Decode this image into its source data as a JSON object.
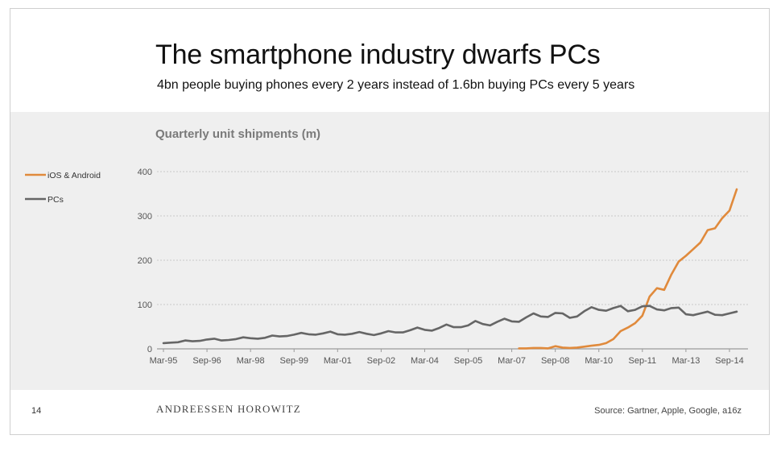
{
  "slide": {
    "title": "The smartphone industry dwarfs PCs",
    "subtitle": "4bn people buying phones every 2 years instead of 1.6bn buying PCs every 5 years",
    "page_number": "14",
    "brand": "ANDREESSEN HOROWITZ",
    "source": "Source: Gartner, Apple, Google, a16z"
  },
  "chart_data": {
    "type": "line",
    "title": "Quarterly unit shipments (m)",
    "xlabel": "",
    "ylabel": "",
    "ylim": [
      0,
      400
    ],
    "yticks": [
      0,
      100,
      200,
      300,
      400
    ],
    "grid": true,
    "legend_position": "left",
    "x_tick_labels": [
      "Mar-95",
      "Sep-96",
      "Mar-98",
      "Sep-99",
      "Mar-01",
      "Sep-02",
      "Mar-04",
      "Sep-05",
      "Mar-07",
      "Sep-08",
      "Mar-10",
      "Sep-11",
      "Mar-13",
      "Sep-14"
    ],
    "x_tick_quarter_index": [
      0,
      6,
      12,
      18,
      24,
      30,
      36,
      42,
      48,
      54,
      60,
      66,
      72,
      78
    ],
    "x_quarter_count": 80,
    "series": [
      {
        "name": "iOS & Android",
        "color": "#e08a3c",
        "start_quarter_index": 49,
        "values": [
          1,
          1,
          2,
          2,
          1,
          6,
          3,
          2,
          3,
          5,
          7,
          9,
          13,
          22,
          40,
          48,
          58,
          75,
          118,
          137,
          133,
          168,
          197,
          210,
          225,
          240,
          268,
          272,
          295,
          312,
          360
        ]
      },
      {
        "name": "PCs",
        "color": "#666666",
        "start_quarter_index": 0,
        "values": [
          13,
          14,
          15,
          19,
          17,
          18,
          21,
          23,
          19,
          20,
          22,
          26,
          24,
          23,
          25,
          30,
          28,
          29,
          32,
          36,
          33,
          32,
          35,
          39,
          33,
          32,
          34,
          38,
          34,
          31,
          35,
          40,
          37,
          37,
          42,
          48,
          43,
          41,
          47,
          55,
          49,
          49,
          53,
          63,
          56,
          53,
          61,
          68,
          62,
          61,
          71,
          80,
          73,
          72,
          81,
          80,
          70,
          73,
          85,
          94,
          88,
          86,
          92,
          97,
          85,
          88,
          96,
          97,
          89,
          87,
          92,
          93,
          78,
          76,
          80,
          84,
          77,
          76,
          80,
          84
        ]
      }
    ]
  }
}
